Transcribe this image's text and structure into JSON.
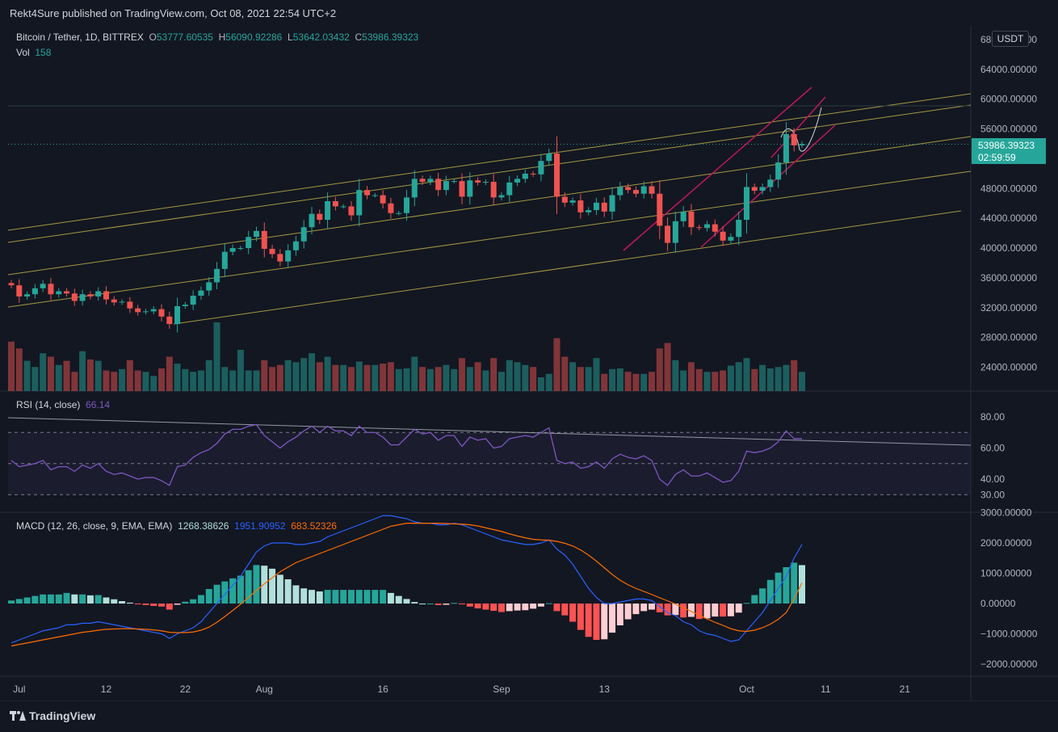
{
  "header": {
    "publisher": "Rekt4Sure published on TradingView.com, Oct 08, 2021 22:54 UTC+2"
  },
  "legend": {
    "symbol": "Bitcoin / Tether, 1D, BITTREX",
    "o_label": "O",
    "o": "53777.60535",
    "h_label": "H",
    "h": "56090.92286",
    "l_label": "L",
    "l": "53642.03432",
    "c_label": "C",
    "c": "53986.39323",
    "vol_label": "Vol",
    "vol": "158"
  },
  "price_tag": {
    "value": "53986.39323",
    "countdown": "02:59:59"
  },
  "currency_button": "USDT",
  "rsi": {
    "label": "RSI (14, close)",
    "value": "66.14"
  },
  "macd": {
    "label": "MACD (12, 26, close, 9, EMA, EMA)",
    "hist": "1268.38626",
    "macd": "1951.90952",
    "signal": "683.52326"
  },
  "footer": {
    "brand": "TradingView"
  },
  "colors": {
    "up": "#26a69a",
    "down": "#ef5350",
    "rsi": "#7e57c2",
    "macd": "#2962ff",
    "signal": "#ff6d00",
    "channel": "#c9b84a",
    "wedge": "#c2185b",
    "bg": "#131722"
  },
  "chart_data": [
    {
      "type": "candlestick",
      "title": "Bitcoin / Tether, 1D, BITTREX",
      "x": [
        "Jun 30",
        "Jul 1",
        "Jul 2",
        "Jul 3",
        "Jul 4",
        "Jul 5",
        "Jul 6",
        "Jul 7",
        "Jul 8",
        "Jul 9",
        "Jul 10",
        "Jul 11",
        "Jul 12",
        "Jul 13",
        "Jul 14",
        "Jul 15",
        "Jul 16",
        "Jul 17",
        "Jul 18",
        "Jul 19",
        "Jul 20",
        "Jul 21",
        "Jul 22",
        "Jul 23",
        "Jul 24",
        "Jul 25",
        "Jul 26",
        "Jul 27",
        "Jul 28",
        "Jul 29",
        "Jul 30",
        "Jul 31",
        "Aug 1",
        "Aug 2",
        "Aug 3",
        "Aug 4",
        "Aug 5",
        "Aug 6",
        "Aug 7",
        "Aug 8",
        "Aug 9",
        "Aug 10",
        "Aug 11",
        "Aug 12",
        "Aug 13",
        "Aug 14",
        "Aug 15",
        "Aug 16",
        "Aug 17",
        "Aug 18",
        "Aug 19",
        "Aug 20",
        "Aug 21",
        "Aug 22",
        "Aug 23",
        "Aug 24",
        "Aug 25",
        "Aug 26",
        "Aug 27",
        "Aug 28",
        "Aug 29",
        "Aug 30",
        "Aug 31",
        "Sep 1",
        "Sep 2",
        "Sep 3",
        "Sep 4",
        "Sep 5",
        "Sep 6",
        "Sep 7",
        "Sep 8",
        "Sep 9",
        "Sep 10",
        "Sep 11",
        "Sep 12",
        "Sep 13",
        "Sep 14",
        "Sep 15",
        "Sep 16",
        "Sep 17",
        "Sep 18",
        "Sep 19",
        "Sep 20",
        "Sep 21",
        "Sep 22",
        "Sep 23",
        "Sep 24",
        "Sep 25",
        "Sep 26",
        "Sep 27",
        "Sep 28",
        "Sep 29",
        "Sep 30",
        "Oct 1",
        "Oct 2",
        "Oct 3",
        "Oct 4",
        "Oct 5",
        "Oct 6",
        "Oct 7",
        "Oct 8"
      ],
      "close": [
        35000,
        33500,
        33800,
        34600,
        35200,
        33800,
        34200,
        33900,
        32900,
        33800,
        33500,
        34200,
        33100,
        32700,
        32800,
        31900,
        31400,
        31500,
        31800,
        30800,
        29800,
        32200,
        32400,
        33600,
        34300,
        35400,
        37200,
        39500,
        40000,
        40000,
        41500,
        42300,
        39900,
        39200,
        38200,
        39700,
        40900,
        42800,
        44600,
        43800,
        46300,
        45600,
        45600,
        44400,
        47800,
        47100,
        47100,
        46000,
        44700,
        44700,
        46800,
        49300,
        48900,
        49300,
        47800,
        49000,
        49000,
        46900,
        49100,
        48800,
        48900,
        46800,
        47100,
        48800,
        49300,
        50000,
        49900,
        51700,
        52700,
        46900,
        46100,
        46400,
        44800,
        45100,
        46100,
        44900,
        47100,
        48200,
        47800,
        47300,
        48300,
        47300,
        43000,
        40700,
        43600,
        44900,
        42800,
        42700,
        43200,
        42200,
        41000,
        41500,
        43800,
        48200,
        47700,
        48200,
        49200,
        51500,
        55300,
        53800,
        53986
      ],
      "ylim": [
        20000,
        68000
      ],
      "yticks": [
        "68000.00000",
        "64000.00000",
        "60000.00000",
        "56000.00000",
        "48000.00000",
        "44000.00000",
        "40000.00000",
        "36000.00000",
        "32000.00000",
        "28000.00000",
        "24000.00000"
      ],
      "xticks": [
        "Jul",
        "12",
        "22",
        "Aug",
        "16",
        "Sep",
        "13",
        "Oct",
        "11",
        "21"
      ],
      "volume": [
        0.72,
        0.62,
        0.44,
        0.35,
        0.55,
        0.5,
        0.38,
        0.44,
        0.28,
        0.58,
        0.46,
        0.44,
        0.3,
        0.28,
        0.32,
        0.45,
        0.3,
        0.28,
        0.22,
        0.33,
        0.5,
        0.4,
        0.32,
        0.28,
        0.3,
        0.45,
        1.0,
        0.35,
        0.3,
        0.6,
        0.3,
        0.3,
        0.45,
        0.35,
        0.38,
        0.45,
        0.42,
        0.48,
        0.55,
        0.42,
        0.5,
        0.38,
        0.38,
        0.35,
        0.43,
        0.38,
        0.38,
        0.4,
        0.42,
        0.32,
        0.33,
        0.5,
        0.35,
        0.32,
        0.35,
        0.38,
        0.32,
        0.48,
        0.35,
        0.42,
        0.3,
        0.48,
        0.28,
        0.45,
        0.42,
        0.38,
        0.35,
        0.2,
        0.25,
        0.77,
        0.5,
        0.42,
        0.35,
        0.35,
        0.48,
        0.25,
        0.32,
        0.33,
        0.28,
        0.25,
        0.25,
        0.28,
        0.62,
        0.7,
        0.45,
        0.3,
        0.42,
        0.32,
        0.28,
        0.28,
        0.3,
        0.37,
        0.42,
        0.48,
        0.32,
        0.38,
        0.33,
        0.35,
        0.38,
        0.45,
        0.28
      ]
    },
    {
      "type": "line",
      "title": "RSI (14, close)",
      "series": [
        {
          "name": "RSI",
          "values": [
            52,
            48,
            49,
            50,
            52,
            46,
            48,
            48,
            45,
            49,
            47,
            50,
            45,
            43,
            44,
            42,
            40,
            41,
            41,
            39,
            36,
            48,
            49,
            54,
            57,
            59,
            63,
            69,
            72,
            72,
            74,
            75,
            68,
            64,
            60,
            64,
            67,
            71,
            74,
            70,
            74,
            71,
            71,
            68,
            74,
            70,
            70,
            67,
            62,
            62,
            67,
            72,
            69,
            70,
            65,
            68,
            68,
            61,
            67,
            65,
            66,
            60,
            61,
            66,
            67,
            68,
            67,
            70,
            73,
            52,
            50,
            51,
            47,
            48,
            51,
            47,
            53,
            56,
            54,
            53,
            55,
            52,
            40,
            36,
            43,
            46,
            42,
            42,
            44,
            41,
            38,
            39,
            45,
            58,
            57,
            58,
            60,
            64,
            71,
            66,
            66
          ]
        }
      ],
      "ylim": [
        25,
        85
      ],
      "yticks": [
        "80.00",
        "60.00",
        "40.00",
        "30.00"
      ]
    },
    {
      "type": "line",
      "title": "MACD (12, 26, close, 9, EMA, EMA)",
      "series": [
        {
          "name": "MACD",
          "values": [
            -1300,
            -1200,
            -1100,
            -1000,
            -900,
            -850,
            -800,
            -700,
            -700,
            -650,
            -650,
            -600,
            -650,
            -700,
            -750,
            -800,
            -850,
            -900,
            -950,
            -1000,
            -1150,
            -1000,
            -900,
            -800,
            -600,
            -300,
            0,
            300,
            600,
            900,
            1300,
            1700,
            1900,
            2000,
            2000,
            2000,
            1950,
            1950,
            2000,
            2050,
            2200,
            2300,
            2400,
            2500,
            2600,
            2700,
            2800,
            2900,
            2900,
            2850,
            2800,
            2700,
            2650,
            2650,
            2600,
            2600,
            2650,
            2600,
            2500,
            2400,
            2300,
            2200,
            2100,
            2050,
            2000,
            1950,
            1950,
            2000,
            2100,
            1800,
            1600,
            1300,
            900,
            500,
            200,
            0,
            0,
            50,
            100,
            150,
            150,
            100,
            -100,
            -300,
            -400,
            -600,
            -700,
            -900,
            -1000,
            -1050,
            -1150,
            -1250,
            -1200,
            -900,
            -600,
            -300,
            100,
            500,
            900,
            1500,
            1950
          ]
        },
        {
          "name": "Signal",
          "values": [
            -1400,
            -1350,
            -1300,
            -1250,
            -1200,
            -1150,
            -1100,
            -1050,
            -1000,
            -950,
            -920,
            -880,
            -850,
            -840,
            -830,
            -830,
            -840,
            -850,
            -870,
            -900,
            -950,
            -960,
            -960,
            -940,
            -880,
            -780,
            -620,
            -430,
            -230,
            -20,
            200,
            430,
            650,
            850,
            1050,
            1200,
            1350,
            1450,
            1550,
            1650,
            1750,
            1850,
            1950,
            2050,
            2150,
            2250,
            2350,
            2450,
            2550,
            2600,
            2650,
            2650,
            2650,
            2650,
            2650,
            2640,
            2630,
            2620,
            2600,
            2560,
            2500,
            2440,
            2380,
            2300,
            2230,
            2170,
            2120,
            2100,
            2090,
            2050,
            1990,
            1900,
            1770,
            1600,
            1400,
            1180,
            960,
            770,
            620,
            500,
            400,
            300,
            190,
            90,
            -20,
            -140,
            -260,
            -390,
            -510,
            -620,
            -720,
            -830,
            -900,
            -920,
            -880,
            -800,
            -680,
            -520,
            -300,
            150,
            683
          ]
        }
      ],
      "histogram": [
        100,
        150,
        200,
        250,
        300,
        300,
        300,
        350,
        300,
        300,
        270,
        280,
        200,
        140,
        80,
        30,
        -10,
        -50,
        -80,
        -100,
        -200,
        -40,
        60,
        140,
        280,
        480,
        620,
        730,
        830,
        920,
        1100,
        1270,
        1250,
        1150,
        950,
        800,
        600,
        500,
        450,
        400,
        450,
        450,
        450,
        450,
        450,
        450,
        450,
        450,
        350,
        250,
        150,
        50,
        0,
        0,
        -50,
        -40,
        20,
        -20,
        -100,
        -160,
        -200,
        -240,
        -280,
        -250,
        -230,
        -220,
        -170,
        -100,
        10,
        -250,
        -390,
        -600,
        -870,
        -1100,
        -1200,
        -1180,
        -960,
        -720,
        -520,
        -350,
        -250,
        -200,
        -290,
        -390,
        -380,
        -460,
        -440,
        -510,
        -490,
        -430,
        -430,
        -420,
        -300,
        20,
        280,
        500,
        780,
        1020,
        1200,
        1350,
        1268
      ],
      "ylim": [
        -2300,
        3100
      ],
      "yticks": [
        "3000.00000",
        "2000.00000",
        "1000.00000",
        "0.00000",
        "−1000.00000",
        "−2000.00000"
      ]
    }
  ]
}
